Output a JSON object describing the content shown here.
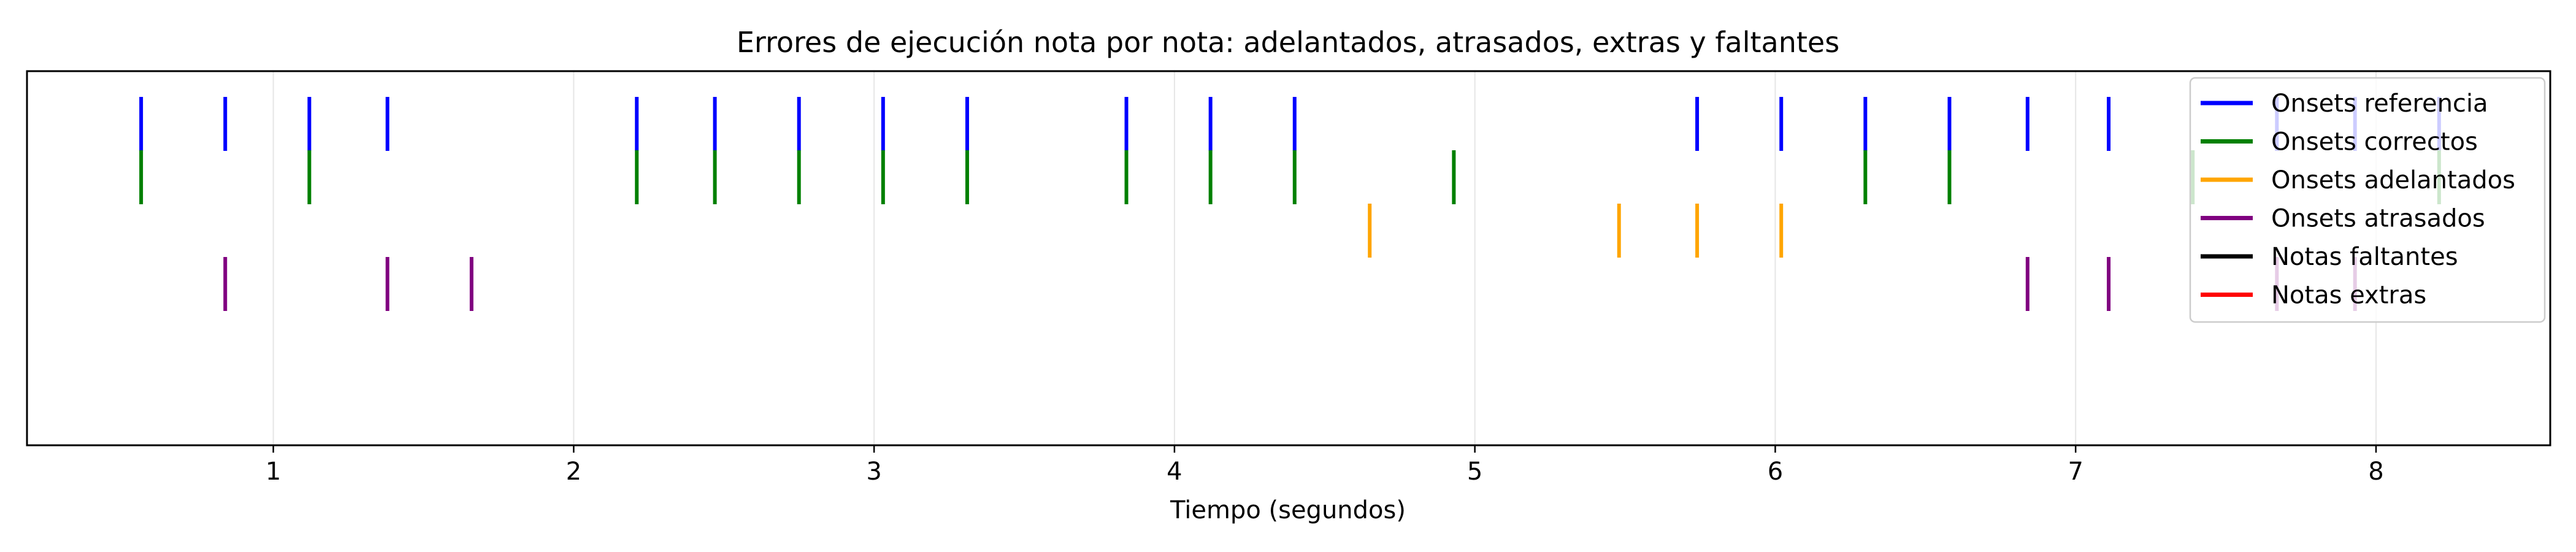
{
  "chart_data": {
    "type": "scatter",
    "title": "Errores de ejecución nota por nota: adelantados, atrasados, extras y faltantes",
    "xlabel": "Tiempo (segundos)",
    "ylabel": "",
    "xlim": [
      0.18,
      8.58
    ],
    "xticks": [
      1,
      2,
      3,
      4,
      5,
      6,
      7,
      8
    ],
    "ytick_labels": "none",
    "grid": "vertical",
    "legend_position": "top-right",
    "mark": "vertical-tick",
    "series": [
      {
        "name": "Onsets referencia",
        "color": "#0000ff",
        "row": 1,
        "x": [
          0.56,
          0.84,
          1.12,
          1.38,
          2.21,
          2.47,
          2.75,
          3.03,
          3.31,
          3.84,
          4.12,
          4.4,
          5.74,
          6.02,
          6.3,
          6.58,
          6.84,
          7.11,
          7.67,
          7.93,
          8.21
        ]
      },
      {
        "name": "Onsets correctos",
        "color": "#008000",
        "row": 2,
        "x": [
          0.56,
          1.12,
          2.21,
          2.47,
          2.75,
          3.03,
          3.31,
          3.84,
          4.12,
          4.4,
          4.93,
          6.3,
          6.58,
          7.39,
          8.21
        ]
      },
      {
        "name": "Onsets adelantados",
        "color": "#ffa500",
        "row": 3,
        "x": [
          4.65,
          5.48,
          5.74,
          6.02
        ]
      },
      {
        "name": "Onsets atrasados",
        "color": "#800080",
        "row": 4,
        "x": [
          0.84,
          1.38,
          1.66,
          6.84,
          7.11,
          7.67,
          7.93
        ]
      },
      {
        "name": "Notas faltantes",
        "color": "#000000",
        "row": 5,
        "x": []
      },
      {
        "name": "Notas extras",
        "color": "#ff0000",
        "row": 6,
        "x": []
      }
    ]
  }
}
